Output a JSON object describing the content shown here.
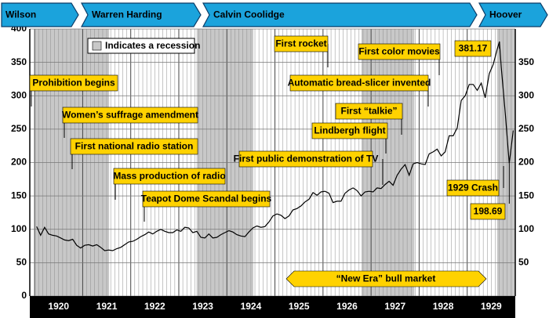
{
  "chart_data": {
    "type": "line",
    "presidents": [
      "Wilson",
      "Warren Harding",
      "Calvin Coolidge",
      "Hoover"
    ],
    "president_color": "#1ba3dc",
    "x": [
      1920.042,
      1920.125,
      1920.208,
      1920.292,
      1920.375,
      1920.458,
      1920.542,
      1920.625,
      1920.708,
      1920.792,
      1920.875,
      1920.958,
      1921.042,
      1921.125,
      1921.208,
      1921.292,
      1921.375,
      1921.458,
      1921.542,
      1921.625,
      1921.708,
      1921.792,
      1921.875,
      1921.958,
      1922.042,
      1922.125,
      1922.208,
      1922.292,
      1922.375,
      1922.458,
      1922.542,
      1922.625,
      1922.708,
      1922.792,
      1922.875,
      1922.958,
      1923.042,
      1923.125,
      1923.208,
      1923.292,
      1923.375,
      1923.458,
      1923.542,
      1923.625,
      1923.708,
      1923.792,
      1923.875,
      1923.958,
      1924.042,
      1924.125,
      1924.208,
      1924.292,
      1924.375,
      1924.458,
      1924.542,
      1924.625,
      1924.708,
      1924.792,
      1924.875,
      1924.958,
      1925.042,
      1925.125,
      1925.208,
      1925.292,
      1925.375,
      1925.458,
      1925.542,
      1925.625,
      1925.708,
      1925.792,
      1925.875,
      1925.958,
      1926.042,
      1926.125,
      1926.208,
      1926.292,
      1926.375,
      1926.458,
      1926.542,
      1926.625,
      1926.708,
      1926.792,
      1926.875,
      1926.958,
      1927.042,
      1927.125,
      1927.208,
      1927.292,
      1927.375,
      1927.458,
      1927.542,
      1927.625,
      1927.708,
      1927.792,
      1927.875,
      1927.958,
      1928.042,
      1928.125,
      1928.208,
      1928.292,
      1928.375,
      1928.458,
      1928.542,
      1928.625,
      1928.708,
      1928.792,
      1928.875,
      1928.958,
      1929.042,
      1929.125,
      1929.208,
      1929.292,
      1929.375,
      1929.458,
      1929.542,
      1929.625,
      1929.67,
      1929.708,
      1929.792,
      1929.875,
      1929.958
    ],
    "values": [
      104,
      91,
      103,
      93,
      91,
      90,
      87,
      84,
      83,
      85,
      76,
      72,
      76,
      77,
      75,
      77,
      73,
      68,
      69,
      68,
      71,
      73,
      77,
      81,
      82,
      85,
      89,
      92,
      96,
      93,
      97,
      100,
      97,
      95,
      95,
      99,
      97,
      103,
      102,
      95,
      97,
      88,
      87,
      93,
      87,
      88,
      92,
      95,
      98,
      96,
      92,
      90,
      89,
      96,
      102,
      105,
      103,
      104,
      111,
      120,
      123,
      121,
      116,
      120,
      129,
      131,
      135,
      141,
      145,
      155,
      151,
      156,
      157,
      154,
      140,
      142,
      142,
      154,
      159,
      162,
      158,
      150,
      156,
      157,
      156,
      162,
      161,
      167,
      172,
      166,
      181,
      190,
      197,
      181,
      198,
      200,
      198,
      197,
      213,
      216,
      220,
      210,
      216,
      240,
      240,
      252,
      293,
      300,
      317,
      317,
      308,
      319,
      297,
      333,
      347,
      370,
      381.17,
      343,
      273,
      198.69,
      248
    ],
    "color": "#000000",
    "xlim": [
      1919.9,
      1930
    ],
    "xticks": [
      1920,
      1921,
      1922,
      1923,
      1924,
      1925,
      1926,
      1927,
      1928,
      1929
    ],
    "ylim": [
      0,
      400
    ],
    "yticks": [
      0,
      50,
      100,
      150,
      200,
      250,
      300,
      350,
      400
    ],
    "y2lim": [
      0,
      400
    ],
    "y2ticks": [
      50,
      100,
      150,
      200,
      250,
      300,
      350
    ],
    "grid": true,
    "legend": "Indicates a recession",
    "recession_color": "#c8c8c8",
    "recessions": [
      [
        1920.0,
        1921.55
      ],
      [
        1923.37,
        1924.55
      ],
      [
        1926.8,
        1927.9
      ],
      [
        1929.62,
        1930
      ]
    ],
    "annotation_color": "#ffd200",
    "annotations": [
      "Prohibition begins",
      "Women’s suffrage amendment",
      "First national radio station",
      "Mass production of radio",
      "Teapot Dome Scandal begins",
      "First public demonstration of TV",
      "First rocket",
      "Automatic bread-slicer invented",
      "First color movies",
      "First “talkie”",
      "Lindbergh flight",
      "1929 Crash"
    ],
    "highlights": [
      {
        "x": 1929.67,
        "value": 381.17
      },
      {
        "x": 1929.875,
        "value": 198.69
      }
    ],
    "bull_market": "“New Era” bull market"
  }
}
